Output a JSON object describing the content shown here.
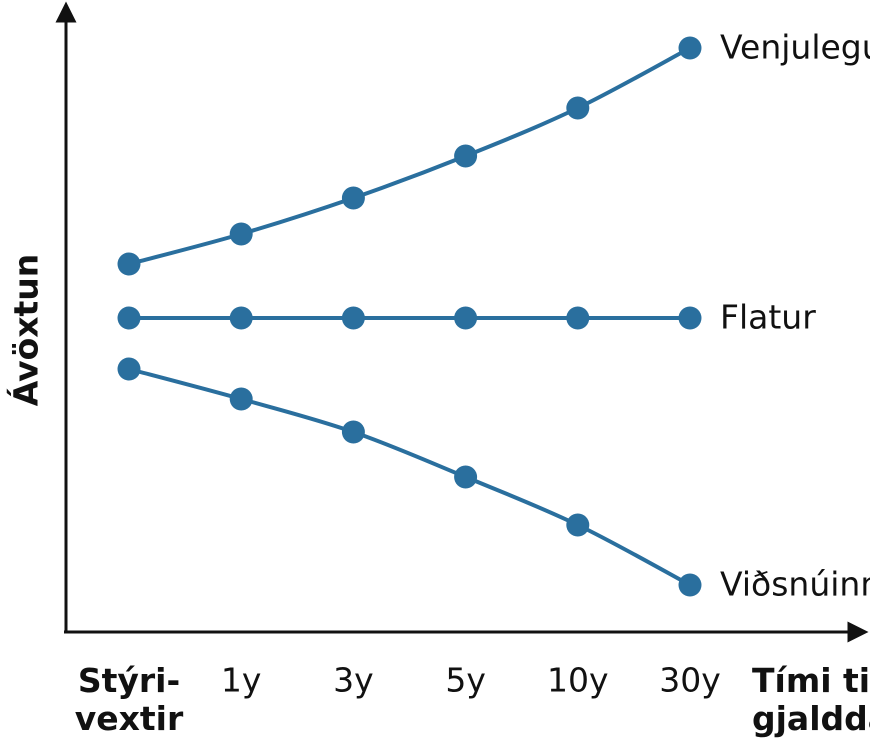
{
  "chart_data": {
    "type": "line",
    "y_label": "Ávöxtun",
    "x_label": "Tími til\ngjalddaga",
    "categories": [
      "Stýri-\nvextir",
      "1y",
      "3y",
      "5y",
      "10y",
      "30y"
    ],
    "ylim": [
      0,
      100
    ],
    "series": [
      {
        "name": "Venjulegur",
        "color": "#2a6f9e",
        "values": [
          61,
          66,
          72,
          79,
          87,
          97
        ]
      },
      {
        "name": "Flatur",
        "color": "#2a6f9e",
        "values": [
          52,
          52,
          52,
          52,
          52,
          52
        ]
      },
      {
        "name": "Viðsnúinn",
        "color": "#2a6f9e",
        "values": [
          43.5,
          38.5,
          33,
          25.5,
          17.5,
          7.5
        ]
      }
    ]
  }
}
